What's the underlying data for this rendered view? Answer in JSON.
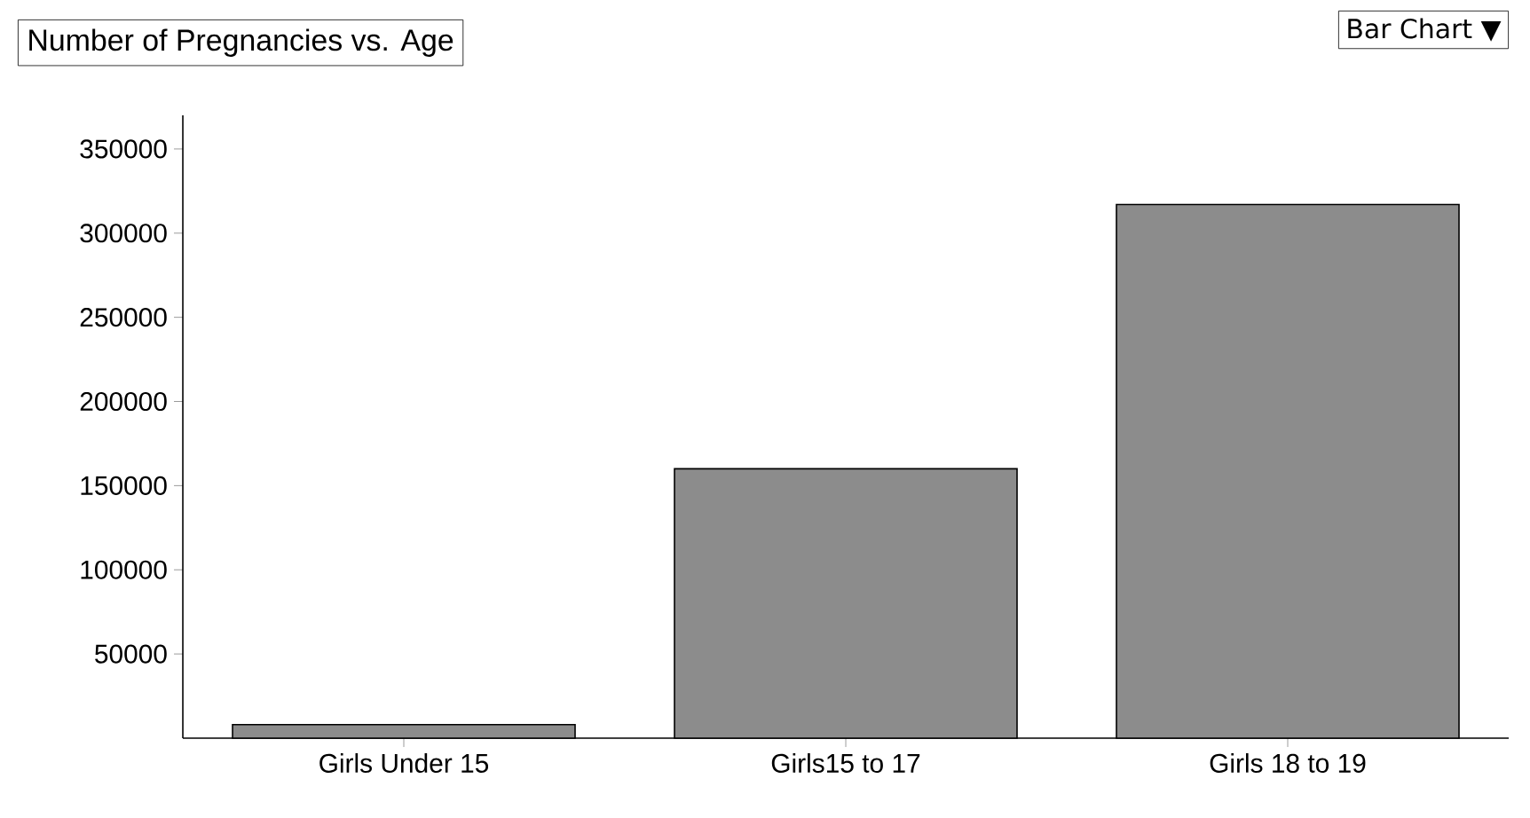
{
  "chart_data": {
    "type": "bar",
    "title": "Number of Pregnancies vs. Age",
    "categories": [
      "Girls Under 15",
      "Girls15 to 17",
      "Girls 18 to 19"
    ],
    "values": [
      8000,
      160000,
      317000
    ],
    "color": "#8c8c8c",
    "ylim": [
      0,
      370000
    ],
    "yticks": [
      50000,
      100000,
      150000,
      200000,
      250000,
      300000,
      350000
    ],
    "annotations": [
      "Bar Chart ▼"
    ]
  }
}
